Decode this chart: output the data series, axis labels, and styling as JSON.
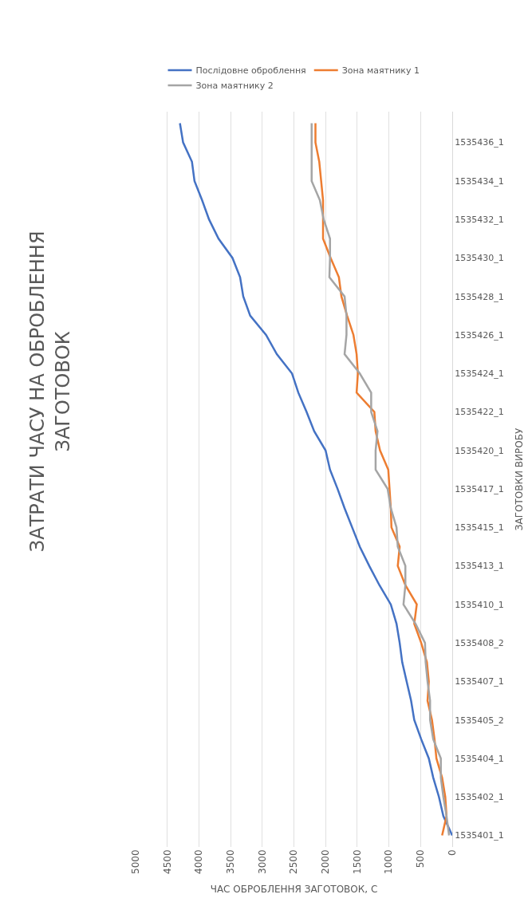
{
  "chart_data": {
    "type": "line",
    "title": "ЗАТРАТИ ЧАСУ НА ОБРОБЛЕННЯ ЗАГОТОВОК",
    "xlabel": "ЧАС ОБРОБЛЕННЯ ЗАГОТОВОК, С",
    "ylabel": "ЗАГОТОВКИ ВИРОБУ",
    "orientation": "horizontal",
    "categories": [
      null,
      "1535436_1",
      null,
      "1535434_1",
      null,
      "1535432_1",
      null,
      "1535430_1",
      null,
      "1535428_1",
      null,
      "1535426_1",
      null,
      "1535424_1",
      null,
      "1535422_1",
      null,
      "1535420_1",
      null,
      "1535417_1",
      null,
      "1535415_1",
      null,
      "1535413_1",
      null,
      "1535410_1",
      null,
      "1535408_2",
      null,
      "1535407_1",
      null,
      "1535405_2",
      null,
      "1535404_1",
      null,
      "1535402_1",
      null,
      "1535401_1"
    ],
    "series": [
      {
        "name": "Послідовне оброблення",
        "color": "#4472c4",
        "values": [
          4300,
          4250,
          4110,
          4070,
          3950,
          3840,
          3690,
          3470,
          3350,
          3300,
          3190,
          2940,
          2770,
          2530,
          2430,
          2300,
          2180,
          2000,
          1930,
          1810,
          1700,
          1580,
          1460,
          1310,
          1150,
          970,
          880,
          830,
          790,
          720,
          650,
          600,
          490,
          370,
          300,
          210,
          140,
          0
        ]
      },
      {
        "name": "Зона маятнику 1",
        "color": "#ed7d31",
        "values": [
          2160,
          2160,
          2100,
          2070,
          2040,
          2040,
          2040,
          1920,
          1790,
          1750,
          1660,
          1560,
          1510,
          1490,
          1510,
          1230,
          1210,
          1140,
          1010,
          990,
          970,
          960,
          830,
          860,
          740,
          560,
          600,
          490,
          400,
          370,
          390,
          320,
          280,
          250,
          160,
          110,
          90,
          160
        ]
      },
      {
        "name": "Зона маятнику 2",
        "color": "#a5a5a5",
        "values": [
          2220,
          2220,
          2220,
          2220,
          2090,
          2030,
          1930,
          1930,
          1940,
          1700,
          1670,
          1670,
          1700,
          1460,
          1280,
          1280,
          1180,
          1210,
          1210,
          1020,
          970,
          880,
          860,
          740,
          740,
          770,
          580,
          430,
          420,
          390,
          350,
          350,
          300,
          180,
          180,
          140,
          90,
          50
        ]
      }
    ],
    "xlim": [
      5000,
      0
    ],
    "xticks": [
      0,
      500,
      1000,
      1500,
      2000,
      2500,
      3000,
      3500,
      4000,
      4500,
      5000
    ],
    "grid": "x",
    "legend": "top",
    "line_style": "solid",
    "marker": "none"
  }
}
